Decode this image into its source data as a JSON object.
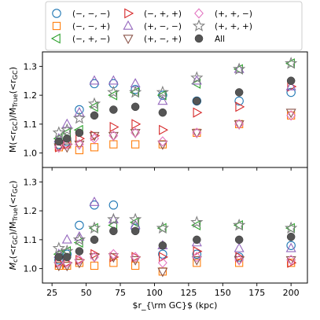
{
  "chart_data": {
    "type": "scatter",
    "xlabel": "$r_{\\rm GC}$ (kpc)",
    "xlim": [
      18,
      212
    ],
    "xticks": [
      25,
      50,
      75,
      100,
      125,
      150,
      175,
      200
    ],
    "x": [
      30,
      36,
      45,
      56,
      70,
      86,
      106,
      131,
      162,
      200
    ],
    "legend": {
      "placement": "top",
      "entries": [
        {
          "key": "mmm",
          "label": "(−, −, −)",
          "marker": "circle",
          "color": "#1f77b4"
        },
        {
          "key": "mmp",
          "label": "(−, −, +)",
          "marker": "square",
          "color": "#ff7f0e"
        },
        {
          "key": "mpm",
          "label": "(−, +, −)",
          "marker": "triangle-left",
          "color": "#2ca02c"
        },
        {
          "key": "mpp",
          "label": "(−, +, +)",
          "marker": "triangle-right",
          "color": "#d62728"
        },
        {
          "key": "pmm",
          "label": "(+, −, −)",
          "marker": "triangle-up",
          "color": "#9467bd"
        },
        {
          "key": "pmp",
          "label": "(+, −, +)",
          "marker": "triangle-down",
          "color": "#8c564b"
        },
        {
          "key": "ppm",
          "label": "(+, +, −)",
          "marker": "diamond",
          "color": "#e377c2"
        },
        {
          "key": "ppp",
          "label": "(+, +, +)",
          "marker": "star",
          "color": "#7f7f7f"
        },
        {
          "key": "all",
          "label": "All",
          "marker": "filled-circle",
          "color": "#555555"
        }
      ]
    },
    "panels": [
      {
        "ylabel": "$M(<r_{\\rm GC})/M_{\\rm True}(<r_{\\rm GC})$",
        "ylim": [
          0.95,
          1.35
        ],
        "yticks": [
          1.0,
          1.1,
          1.2,
          1.3
        ],
        "series": {
          "mmm": [
            1.03,
            1.04,
            1.15,
            1.24,
            1.24,
            1.22,
            1.2,
            1.18,
            1.18,
            1.21
          ],
          "mmp": [
            1.02,
            1.03,
            1.01,
            1.02,
            1.03,
            1.03,
            1.03,
            1.07,
            1.1,
            1.13
          ],
          "mpm": [
            1.05,
            1.07,
            1.08,
            1.16,
            1.2,
            1.21,
            1.2,
            1.24,
            1.29,
            1.31
          ],
          "mpp": [
            1.02,
            1.03,
            1.05,
            1.06,
            1.09,
            1.1,
            1.08,
            1.14,
            1.16,
            1.23
          ],
          "pmm": [
            1.05,
            1.1,
            1.14,
            1.25,
            1.25,
            1.24,
            1.18,
            1.25,
            1.29,
            1.23
          ],
          "pmp": [
            1.02,
            1.02,
            1.03,
            1.06,
            1.06,
            1.07,
            1.03,
            1.07,
            1.1,
            1.14
          ],
          "ppm": [
            1.02,
            1.03,
            1.03,
            1.05,
            1.06,
            1.07,
            1.04,
            1.07,
            1.1,
            1.13
          ],
          "ppp": [
            1.07,
            1.08,
            1.12,
            1.17,
            1.21,
            1.21,
            1.21,
            1.26,
            1.29,
            1.31
          ],
          "all": [
            1.04,
            1.05,
            1.07,
            1.13,
            1.15,
            1.16,
            1.14,
            1.18,
            1.21,
            1.25
          ]
        }
      },
      {
        "ylabel": "$M_{\\rm c}(<r_{\\rm GC})/M_{\\rm True}(<r_{\\rm GC})$",
        "ylim": [
          0.95,
          1.35
        ],
        "yticks": [
          1.0,
          1.1,
          1.2,
          1.3
        ],
        "series": {
          "mmm": [
            1.03,
            1.05,
            1.15,
            1.22,
            1.22,
            1.14,
            1.05,
            1.05,
            1.04,
            1.08
          ],
          "mmp": [
            1.01,
            1.01,
            1.02,
            1.01,
            1.02,
            1.01,
            0.99,
            1.02,
            1.02,
            1.02
          ],
          "mpm": [
            1.05,
            1.06,
            1.09,
            1.14,
            1.15,
            1.16,
            1.14,
            1.15,
            1.15,
            1.14
          ],
          "mpp": [
            1.02,
            1.02,
            1.03,
            1.05,
            1.04,
            1.04,
            1.04,
            1.06,
            1.04,
            1.02
          ],
          "pmm": [
            1.05,
            1.1,
            1.11,
            1.23,
            1.17,
            1.15,
            1.08,
            1.09,
            1.07,
            1.07
          ],
          "pmp": [
            1.01,
            1.01,
            1.02,
            1.04,
            1.04,
            1.03,
            0.99,
            1.03,
            1.03,
            1.03
          ],
          "ppm": [
            1.02,
            1.02,
            1.03,
            1.04,
            1.05,
            1.04,
            1.02,
            1.04,
            1.03,
            1.03
          ],
          "ppp": [
            1.07,
            1.06,
            1.1,
            1.14,
            1.17,
            1.17,
            1.14,
            1.16,
            1.15,
            1.14
          ],
          "all": [
            1.04,
            1.04,
            1.06,
            1.1,
            1.13,
            1.13,
            1.08,
            1.1,
            1.1,
            1.11
          ]
        }
      }
    ]
  }
}
